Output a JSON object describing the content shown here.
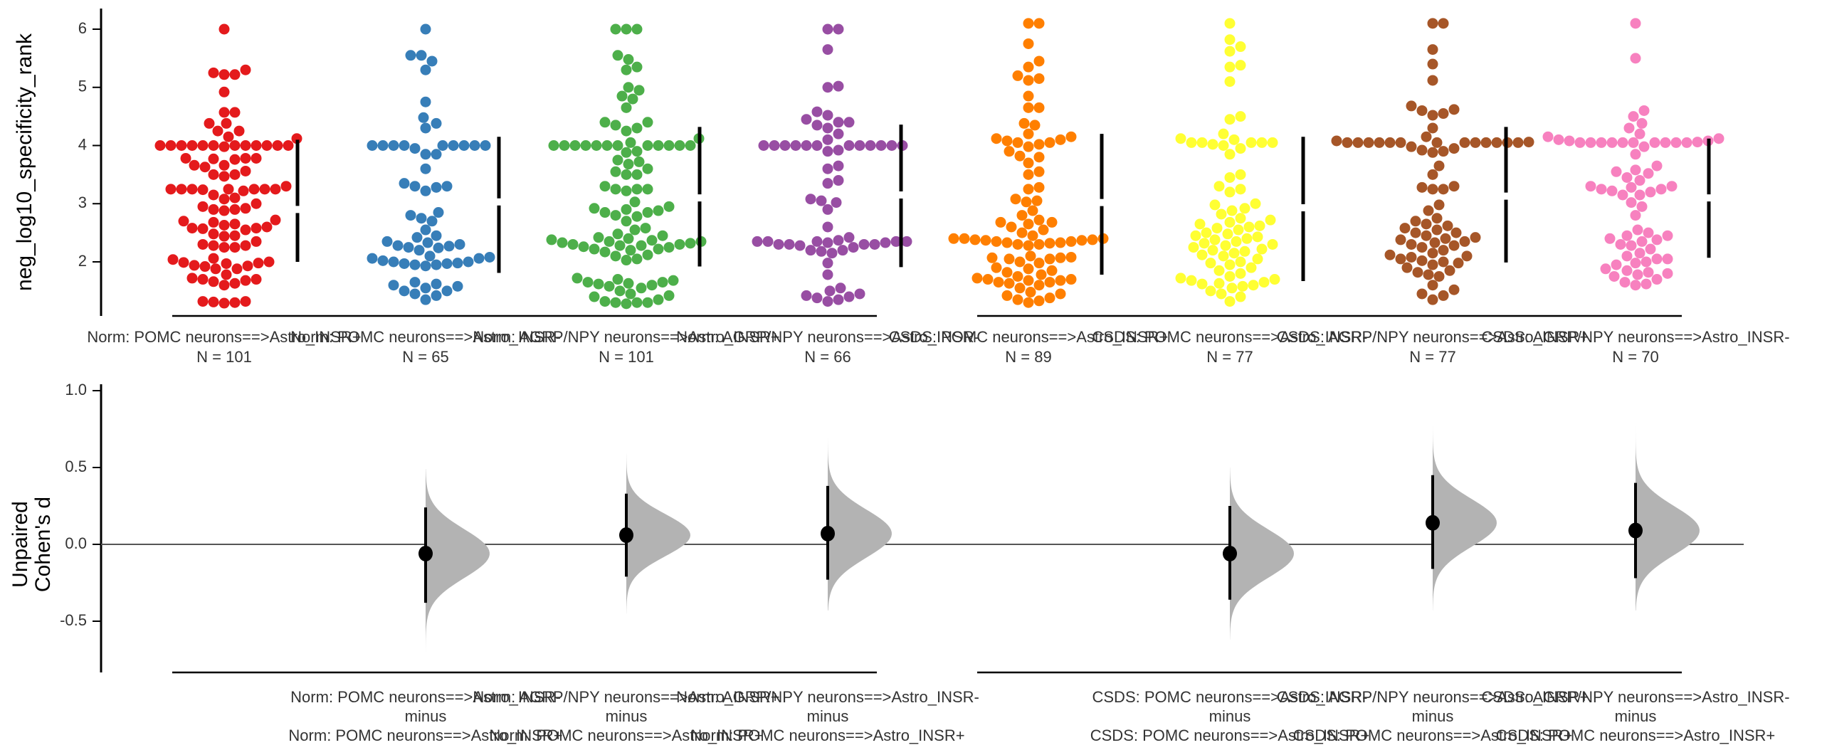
{
  "chart_data": [
    {
      "type": "scatter",
      "subtype": "swarm",
      "ylabel": "neg_log10_specificity_rank",
      "ylim": [
        1.1,
        6.4
      ],
      "yticks": [
        2,
        3,
        4,
        5,
        6
      ],
      "blocks": [
        [
          "Norm: POMC neurons==>Astro_INSR+",
          "Norm: POMC neurons==>Astro_INSR-",
          "Norm: AGRP/NPY neurons==>Astro_INSR+",
          "Norm: AGRP/NPY neurons==>Astro_INSR-"
        ],
        [
          "CSDS: POMC neurons==>Astro_INSR+",
          "CSDS: POMC neurons==>Astro_INSR-",
          "CSDS: AGRP/NPY neurons==>Astro_INSR+",
          "CSDS: AGRP/NPY neurons==>Astro_INSR-"
        ]
      ],
      "groups": [
        {
          "name": "Norm: POMC neurons==>Astro_INSR+",
          "n_label": "N = 101",
          "color": "#e41a1c",
          "summary": {
            "mean": 2.9,
            "upper": 4.1,
            "lower": 2.0
          },
          "values": [
            6.0,
            5.3,
            5.25,
            5.22,
            5.22,
            4.92,
            4.57,
            4.57,
            4.38,
            4.38,
            4.25,
            4.25,
            4.15,
            4.12,
            4.0,
            4.0,
            4.0,
            4.0,
            4.0,
            4.0,
            4.0,
            4.0,
            4.0,
            4.0,
            4.0,
            4.0,
            3.98,
            3.78,
            3.78,
            3.78,
            3.77,
            3.76,
            3.66,
            3.66,
            3.63,
            3.56,
            3.5,
            3.5,
            3.47,
            3.3,
            3.25,
            3.25,
            3.25,
            3.25,
            3.25,
            3.25,
            3.25,
            3.24,
            3.22,
            3.15,
            3.1,
            3.08,
            3.0,
            2.95,
            2.92,
            2.9,
            2.9,
            2.88,
            2.72,
            2.7,
            2.68,
            2.65,
            2.63,
            2.6,
            2.58,
            2.58,
            2.57,
            2.55,
            2.48,
            2.45,
            2.44,
            2.35,
            2.3,
            2.28,
            2.28,
            2.25,
            2.25,
            2.06,
            2.04,
            2.0,
            1.99,
            1.98,
            1.97,
            1.94,
            1.93,
            1.92,
            1.88,
            1.88,
            1.78,
            1.72,
            1.7,
            1.7,
            1.68,
            1.66,
            1.63,
            1.6,
            1.32,
            1.32,
            1.31,
            1.3,
            1.29
          ]
        },
        {
          "name": "Norm: POMC neurons==>Astro_INSR-",
          "n_label": "N = 65",
          "color": "#377eb8",
          "summary": {
            "mean": 3.03,
            "upper": 4.15,
            "lower": 1.81
          },
          "values": [
            6.0,
            5.55,
            5.55,
            5.45,
            5.3,
            4.75,
            4.48,
            4.38,
            4.3,
            4.0,
            4.0,
            4.0,
            4.0,
            4.0,
            4.0,
            4.0,
            4.0,
            4.0,
            3.95,
            3.85,
            3.85,
            3.6,
            3.35,
            3.3,
            3.3,
            3.28,
            3.22,
            2.85,
            2.8,
            2.75,
            2.7,
            2.55,
            2.45,
            2.42,
            2.35,
            2.33,
            2.3,
            2.28,
            2.27,
            2.25,
            2.24,
            2.2,
            2.1,
            2.08,
            2.06,
            2.06,
            2.02,
            2.0,
            2.0,
            1.98,
            1.97,
            1.97,
            1.95,
            1.95,
            1.93,
            1.65,
            1.62,
            1.6,
            1.58,
            1.55,
            1.5,
            1.5,
            1.45,
            1.42,
            1.35
          ]
        },
        {
          "name": "Norm: AGRP/NPY neurons==>Astro_INSR+",
          "n_label": "N = 101",
          "color": "#4daf4a",
          "summary": {
            "mean": 3.1,
            "upper": 4.32,
            "lower": 1.92
          },
          "values": [
            6.0,
            6.0,
            6.0,
            5.55,
            5.48,
            5.35,
            5.3,
            5.0,
            4.95,
            4.85,
            4.8,
            4.65,
            4.4,
            4.4,
            4.35,
            4.3,
            4.25,
            4.12,
            4.05,
            4.0,
            4.0,
            4.0,
            4.0,
            4.0,
            4.0,
            4.0,
            4.0,
            4.0,
            4.0,
            4.0,
            4.0,
            3.9,
            3.88,
            3.75,
            3.72,
            3.68,
            3.6,
            3.55,
            3.5,
            3.5,
            3.3,
            3.25,
            3.25,
            3.25,
            3.22,
            3.03,
            2.95,
            2.92,
            2.9,
            2.88,
            2.85,
            2.85,
            2.8,
            2.78,
            2.7,
            2.58,
            2.55,
            2.48,
            2.45,
            2.42,
            2.4,
            2.38,
            2.37,
            2.35,
            2.35,
            2.33,
            2.32,
            2.3,
            2.3,
            2.28,
            2.28,
            2.26,
            2.25,
            2.22,
            2.22,
            2.2,
            2.17,
            2.12,
            2.1,
            2.05,
            2.03,
            1.72,
            1.7,
            1.68,
            1.65,
            1.65,
            1.63,
            1.62,
            1.6,
            1.58,
            1.55,
            1.5,
            1.45,
            1.42,
            1.4,
            1.35,
            1.32,
            1.3,
            1.3,
            1.3,
            1.28
          ]
        },
        {
          "name": "Norm: AGRP/NPY neurons==>Astro_INSR-",
          "n_label": "N = 66",
          "color": "#984ea3",
          "summary": {
            "mean": 3.15,
            "upper": 4.36,
            "lower": 1.91
          },
          "values": [
            6.0,
            6.0,
            5.65,
            5.0,
            5.02,
            4.58,
            4.52,
            4.45,
            4.4,
            4.4,
            4.35,
            4.3,
            4.2,
            4.1,
            4.0,
            4.0,
            4.0,
            4.0,
            4.0,
            4.0,
            4.0,
            4.0,
            4.0,
            4.0,
            4.0,
            4.0,
            3.92,
            3.9,
            3.65,
            3.6,
            3.4,
            3.35,
            3.08,
            3.05,
            3.02,
            2.9,
            2.6,
            2.42,
            2.37,
            2.35,
            2.35,
            2.35,
            2.35,
            2.35,
            2.33,
            2.33,
            2.3,
            2.3,
            2.3,
            2.3,
            2.28,
            2.25,
            2.2,
            2.2,
            2.18,
            2.15,
            1.98,
            1.78,
            1.55,
            1.5,
            1.45,
            1.42,
            1.4,
            1.38,
            1.35,
            1.32
          ]
        },
        {
          "name": "CSDS: POMC neurons==>Astro_INSR+",
          "n_label": "N = 89",
          "color": "#ff7f00",
          "summary": {
            "mean": 3.02,
            "upper": 4.2,
            "lower": 1.78
          },
          "values": [
            6.1,
            6.1,
            5.75,
            5.45,
            5.35,
            5.2,
            5.15,
            5.12,
            4.85,
            4.65,
            4.65,
            4.38,
            4.35,
            4.2,
            4.15,
            4.12,
            4.1,
            4.08,
            4.05,
            4.05,
            4.02,
            3.98,
            3.9,
            3.82,
            3.8,
            3.7,
            3.55,
            3.5,
            3.28,
            3.25,
            3.08,
            3.05,
            3.03,
            2.88,
            2.8,
            2.72,
            2.68,
            2.68,
            2.65,
            2.6,
            2.55,
            2.5,
            2.45,
            2.4,
            2.4,
            2.4,
            2.38,
            2.38,
            2.37,
            2.37,
            2.35,
            2.35,
            2.33,
            2.33,
            2.32,
            2.3,
            2.3,
            2.28,
            2.1,
            2.08,
            2.07,
            2.07,
            2.05,
            2.05,
            2.0,
            1.98,
            1.9,
            1.88,
            1.85,
            1.82,
            1.78,
            1.75,
            1.72,
            1.7,
            1.7,
            1.68,
            1.68,
            1.65,
            1.65,
            1.63,
            1.6,
            1.55,
            1.48,
            1.45,
            1.42,
            1.38,
            1.35,
            1.33,
            1.3
          ]
        },
        {
          "name": "CSDS: POMC neurons==>Astro_INSR-",
          "n_label": "N = 77",
          "color": "#ffff33",
          "summary": {
            "mean": 2.93,
            "upper": 4.15,
            "lower": 1.67
          },
          "values": [
            6.1,
            5.82,
            5.7,
            5.62,
            5.38,
            5.35,
            5.1,
            4.5,
            4.45,
            4.2,
            4.12,
            4.1,
            4.05,
            4.05,
            4.05,
            4.05,
            4.05,
            4.02,
            4.0,
            3.95,
            3.85,
            3.5,
            3.45,
            3.3,
            3.25,
            3.2,
            3.0,
            2.98,
            2.92,
            2.88,
            2.82,
            2.75,
            2.72,
            2.68,
            2.65,
            2.62,
            2.6,
            2.58,
            2.55,
            2.5,
            2.48,
            2.45,
            2.43,
            2.4,
            2.38,
            2.35,
            2.32,
            2.3,
            2.28,
            2.25,
            2.22,
            2.2,
            2.18,
            2.15,
            2.12,
            2.1,
            2.05,
            2.0,
            1.98,
            1.95,
            1.9,
            1.85,
            1.8,
            1.75,
            1.72,
            1.7,
            1.68,
            1.65,
            1.63,
            1.62,
            1.6,
            1.58,
            1.55,
            1.5,
            1.45,
            1.4,
            1.32
          ]
        },
        {
          "name": "CSDS: AGRP/NPY neurons==>Astro_INSR+",
          "n_label": "N = 77",
          "color": "#a65628",
          "summary": {
            "mean": 3.13,
            "upper": 4.32,
            "lower": 1.99
          },
          "values": [
            6.1,
            6.1,
            5.65,
            5.4,
            5.12,
            4.68,
            4.62,
            4.6,
            4.55,
            4.52,
            4.3,
            4.15,
            4.08,
            4.06,
            4.05,
            4.05,
            4.05,
            4.05,
            4.05,
            4.05,
            4.05,
            4.05,
            4.05,
            4.05,
            4.05,
            4.05,
            4.05,
            3.98,
            3.95,
            3.92,
            3.9,
            3.88,
            3.65,
            3.5,
            3.3,
            3.28,
            3.25,
            3.25,
            2.98,
            2.88,
            2.75,
            2.7,
            2.65,
            2.62,
            2.58,
            2.55,
            2.5,
            2.5,
            2.45,
            2.42,
            2.4,
            2.38,
            2.35,
            2.33,
            2.3,
            2.28,
            2.25,
            2.2,
            2.15,
            2.12,
            2.1,
            2.08,
            2.05,
            2.02,
            2.0,
            1.98,
            1.95,
            1.9,
            1.85,
            1.82,
            1.78,
            1.75,
            1.6,
            1.52,
            1.45,
            1.42,
            1.35
          ]
        },
        {
          "name": "CSDS: AGRP/NPY neurons==>Astro_INSR-",
          "n_label": "N = 70",
          "color": "#f781bf",
          "summary": {
            "mean": 3.1,
            "upper": 4.12,
            "lower": 2.07
          },
          "values": [
            6.1,
            5.5,
            4.6,
            4.5,
            4.38,
            4.3,
            4.2,
            4.15,
            4.12,
            4.1,
            4.08,
            4.08,
            4.06,
            4.05,
            4.05,
            4.05,
            4.05,
            4.05,
            4.05,
            4.05,
            4.05,
            4.05,
            4.05,
            3.98,
            3.85,
            3.65,
            3.58,
            3.55,
            3.52,
            3.45,
            3.4,
            3.3,
            3.3,
            3.28,
            3.25,
            3.25,
            3.22,
            3.2,
            3.15,
            3.15,
            3.02,
            2.95,
            2.8,
            2.55,
            2.5,
            2.45,
            2.45,
            2.4,
            2.38,
            2.35,
            2.3,
            2.28,
            2.22,
            2.15,
            2.1,
            2.05,
            2.05,
            2.0,
            1.98,
            1.95,
            1.88,
            1.85,
            1.82,
            1.8,
            1.78,
            1.75,
            1.7,
            1.65,
            1.62,
            1.6
          ]
        }
      ]
    },
    {
      "type": "scatter",
      "subtype": "effect-size-estimation",
      "ylabel_lines": [
        "Unpaired",
        "Cohen's d"
      ],
      "ylim": [
        -0.85,
        1.05
      ],
      "yticks": [
        1.0,
        0.5,
        0.0,
        -0.5
      ],
      "ytick_labels": [
        "1.0",
        "0.5",
        "0.0",
        "-0.5"
      ],
      "zero_line": true,
      "comparisons": [
        {
          "x_index": 1,
          "test": "Norm: POMC neurons==>Astro_INSR-",
          "minus_label": "minus",
          "control": "Norm: POMC neurons==>Astro_INSR+",
          "effect": -0.06,
          "ci": [
            -0.38,
            0.24
          ],
          "dist_range": [
            -0.75,
            0.49
          ]
        },
        {
          "x_index": 2,
          "test": "Norm: AGRP/NPY neurons==>Astro_INSR+",
          "minus_label": "minus",
          "control": "Norm: POMC neurons==>Astro_INSR+",
          "effect": 0.06,
          "ci": [
            -0.21,
            0.33
          ],
          "dist_range": [
            -0.45,
            0.59
          ]
        },
        {
          "x_index": 3,
          "test": "Norm: AGRP/NPY neurons==>Astro_INSR-",
          "minus_label": "minus",
          "control": "Norm: POMC neurons==>Astro_INSR+",
          "effect": 0.07,
          "ci": [
            -0.23,
            0.38
          ],
          "dist_range": [
            -0.43,
            0.77
          ]
        },
        {
          "x_index": 5,
          "test": "CSDS: POMC neurons==>Astro_INSR-",
          "minus_label": "minus",
          "control": "CSDS: POMC neurons==>Astro_INSR+",
          "effect": -0.06,
          "ci": [
            -0.36,
            0.25
          ],
          "dist_range": [
            -0.62,
            0.5
          ]
        },
        {
          "x_index": 6,
          "test": "CSDS: AGRP/NPY neurons==>Astro_INSR+",
          "minus_label": "minus",
          "control": "CSDS: POMC neurons==>Astro_INSR+",
          "effect": 0.14,
          "ci": [
            -0.16,
            0.45
          ],
          "dist_range": [
            -0.43,
            0.8
          ]
        },
        {
          "x_index": 7,
          "test": "CSDS: AGRP/NPY neurons==>Astro_INSR-",
          "minus_label": "minus",
          "control": "CSDS: POMC neurons==>Astro_INSR+",
          "effect": 0.09,
          "ci": [
            -0.22,
            0.4
          ],
          "dist_range": [
            -0.43,
            0.77
          ]
        }
      ]
    }
  ]
}
